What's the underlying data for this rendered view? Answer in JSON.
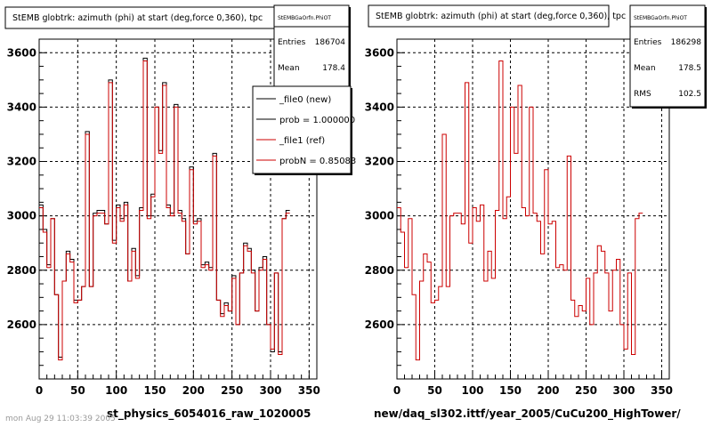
{
  "chart_data": [
    {
      "type": "line",
      "panel": "left",
      "title": "StEMB globtrk: azimuth (phi) at start (deg,force 0,360), tpc",
      "xlim": [
        0,
        360
      ],
      "ylim": [
        2400,
        3650
      ],
      "x_ticks": [
        0,
        50,
        100,
        150,
        200,
        250,
        300,
        350
      ],
      "y_ticks": [
        2600,
        2800,
        3000,
        3200,
        3400,
        3600
      ],
      "grid": true,
      "bottom_label": "st_physics_6054016_raw_1020005",
      "stats": {
        "name": "StEMBGaOrfn.PhiOT",
        "rows": [
          {
            "label": "Entries",
            "value": "186704"
          },
          {
            "label": "Mean",
            "value": "178.4"
          }
        ]
      },
      "legend": {
        "placement": "right",
        "entries": [
          {
            "label": "_file0 (new)",
            "color": "#000000"
          },
          {
            "label": "prob = 1.000000",
            "color": "#000000"
          },
          {
            "label": "_file1 (ref)",
            "color": "#cc0000"
          },
          {
            "label": "probN = 0.85083",
            "color": "#cc0000"
          }
        ]
      },
      "bin_width": 5,
      "series": [
        {
          "color": "#000000",
          "values": [
            3040,
            2950,
            2820,
            2990,
            2710,
            2480,
            2760,
            2870,
            2840,
            2690,
            2690,
            2740,
            3310,
            2740,
            3010,
            3020,
            3020,
            2970,
            3500,
            2910,
            3040,
            2990,
            3050,
            2760,
            2880,
            2780,
            3030,
            3580,
            3000,
            3080,
            3400,
            3240,
            3490,
            3040,
            3010,
            3410,
            3020,
            2990,
            2860,
            3180,
            2980,
            2990,
            2820,
            2830,
            2810,
            3230,
            2690,
            2640,
            2680,
            2650,
            2780,
            2600,
            2790,
            2900,
            2880,
            2800,
            2650,
            2810,
            2850,
            2600,
            2500,
            2790,
            2500,
            2990,
            3020
          ]
        },
        {
          "color": "#cc0000",
          "values": [
            3030,
            2940,
            2810,
            2990,
            2710,
            2470,
            2760,
            2860,
            2830,
            2680,
            2690,
            2740,
            3300,
            2740,
            3000,
            3010,
            3010,
            2970,
            3490,
            2900,
            3030,
            2980,
            3040,
            2760,
            2870,
            2770,
            3020,
            3570,
            2990,
            3070,
            3400,
            3230,
            3480,
            3030,
            3000,
            3400,
            3010,
            2980,
            2860,
            3170,
            2970,
            2980,
            2810,
            2820,
            2800,
            3220,
            2690,
            2630,
            2670,
            2650,
            2770,
            2600,
            2790,
            2890,
            2870,
            2790,
            2650,
            2800,
            2840,
            2600,
            2510,
            2790,
            2490,
            2990,
            3010
          ]
        }
      ]
    },
    {
      "type": "line",
      "panel": "right",
      "title": "StEMB globtrk: azimuth (phi) at start (deg,force 0,360), tpc",
      "xlim": [
        0,
        360
      ],
      "ylim": [
        2400,
        3650
      ],
      "x_ticks": [
        0,
        50,
        100,
        150,
        200,
        250,
        300,
        350
      ],
      "y_ticks": [
        2600,
        2800,
        3000,
        3200,
        3400,
        3600
      ],
      "grid": true,
      "bottom_label": "new/daq_sl302.ittf/year_2005/CuCu200_HighTower/",
      "stats": {
        "name": "StEMBGaOrfn.PhiOT",
        "rows": [
          {
            "label": "Entries",
            "value": "186298"
          },
          {
            "label": "Mean",
            "value": "178.5"
          },
          {
            "label": "RMS",
            "value": "102.5"
          }
        ]
      },
      "bin_width": 5,
      "series": [
        {
          "color": "#cc0000",
          "values": [
            3030,
            2940,
            2810,
            2990,
            2710,
            2470,
            2760,
            2860,
            2830,
            2680,
            2690,
            2740,
            3300,
            2740,
            3000,
            3010,
            3010,
            2970,
            3490,
            2900,
            3030,
            2980,
            3040,
            2760,
            2870,
            2770,
            3020,
            3570,
            2990,
            3070,
            3400,
            3230,
            3480,
            3030,
            3000,
            3400,
            3010,
            2980,
            2860,
            3170,
            2970,
            2980,
            2810,
            2820,
            2800,
            3220,
            2690,
            2630,
            2670,
            2650,
            2770,
            2600,
            2790,
            2890,
            2870,
            2790,
            2650,
            2800,
            2840,
            2600,
            2510,
            2790,
            2490,
            2990,
            3010
          ]
        }
      ]
    }
  ],
  "footer": {
    "left_text": "mon Aug 29 11:03:39 2005"
  }
}
